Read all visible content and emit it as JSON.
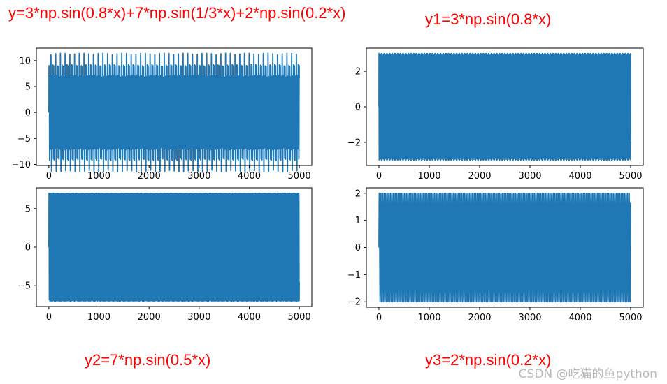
{
  "captions": {
    "top_left": "y=3*np.sin(0.8*x)+7*np.sin(1/3*x)+2*np.sin(0.2*x)",
    "top_right": "y1=3*np.sin(0.8*x)",
    "bottom_left": "y2=7*np.sin(0.5*x)",
    "bottom_right": "y3=2*np.sin(0.2*x)"
  },
  "watermark": "CSDN @吃猫的鱼python",
  "colors": {
    "line": "#1f77b4",
    "caption": "#ff0000"
  },
  "chart_data": [
    {
      "type": "line",
      "title": "y=3*np.sin(0.8*x)+7*np.sin(1/3*x)+2*np.sin(0.2*x)",
      "expression": "3*sin(0.8*x)+7*sin(x/3)+2*sin(0.2*x)",
      "sample_count": 5000,
      "x_range": [
        0,
        5000
      ],
      "xlim": [
        -250,
        5250
      ],
      "ylim": [
        -10.2,
        12.4
      ],
      "xticks": [
        0,
        1000,
        2000,
        3000,
        4000,
        5000
      ],
      "yticks": [
        -10,
        -5,
        0,
        5,
        10
      ],
      "xlabel": "",
      "ylabel": ""
    },
    {
      "type": "line",
      "title": "y1=3*np.sin(0.8*x)",
      "expression": "3*sin(0.8*x)",
      "sample_count": 5000,
      "x_range": [
        0,
        5000
      ],
      "xlim": [
        -250,
        5250
      ],
      "ylim": [
        -3.3,
        3.3
      ],
      "xticks": [
        0,
        1000,
        2000,
        3000,
        4000,
        5000
      ],
      "yticks": [
        -2,
        0,
        2
      ],
      "xlabel": "",
      "ylabel": ""
    },
    {
      "type": "line",
      "title": "y2=7*np.sin(0.5*x)",
      "expression": "7*sin(0.5*x)",
      "sample_count": 5000,
      "x_range": [
        0,
        5000
      ],
      "xlim": [
        -250,
        5250
      ],
      "ylim": [
        -7.7,
        7.7
      ],
      "xticks": [
        0,
        1000,
        2000,
        3000,
        4000,
        5000
      ],
      "yticks": [
        -5,
        0,
        5
      ],
      "xlabel": "",
      "ylabel": ""
    },
    {
      "type": "line",
      "title": "y3=2*np.sin(0.2*x)",
      "expression": "2*sin(0.2*x)",
      "sample_count": 5000,
      "x_range": [
        0,
        5000
      ],
      "xlim": [
        -250,
        5250
      ],
      "ylim": [
        -2.2,
        2.2
      ],
      "xticks": [
        0,
        1000,
        2000,
        3000,
        4000,
        5000
      ],
      "yticks": [
        -2,
        -1,
        0,
        1,
        2
      ],
      "xlabel": "",
      "ylabel": ""
    }
  ]
}
